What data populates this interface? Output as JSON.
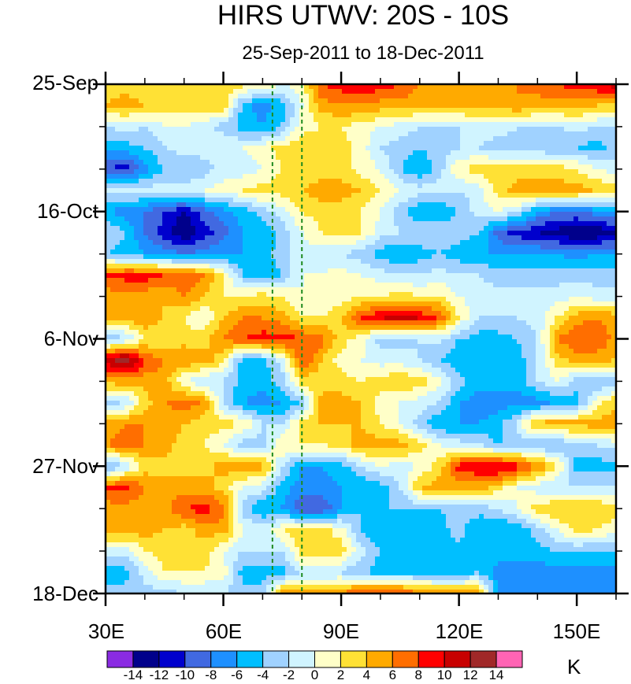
{
  "chart_data": {
    "type": "heatmap",
    "title": "HIRS UTWV: 20S - 10S",
    "subtitle": "25-Sep-2011 to 18-Dec-2011",
    "xlabel": "",
    "ylabel": "",
    "units": "K",
    "xlim": [
      30,
      160
    ],
    "ylim_days": [
      0,
      84
    ],
    "x_ticks": [
      {
        "value": 30,
        "label": "30E"
      },
      {
        "value": 60,
        "label": "60E"
      },
      {
        "value": 90,
        "label": "90E"
      },
      {
        "value": 120,
        "label": "120E"
      },
      {
        "value": 150,
        "label": "150E"
      }
    ],
    "x_minor_step": 10,
    "y_ticks": [
      {
        "day": 0,
        "label": "25-Sep"
      },
      {
        "day": 21,
        "label": "16-Oct"
      },
      {
        "day": 42,
        "label": "6-Nov"
      },
      {
        "day": 63,
        "label": "27-Nov"
      },
      {
        "day": 84,
        "label": "18-Dec"
      }
    ],
    "y_minor_step_days": 7,
    "reference_lines": [
      {
        "lon": 72.5,
        "style": "dashed",
        "color": "#1e8a1e"
      },
      {
        "lon": 80,
        "style": "dashed",
        "color": "#1e8a1e"
      }
    ],
    "colorbar": {
      "levels": [
        -14,
        -12,
        -10,
        -8,
        -6,
        -4,
        -2,
        0,
        2,
        4,
        6,
        8,
        10,
        12,
        14
      ],
      "labels": [
        "-14",
        "-12",
        "-10",
        "-8",
        "-6",
        "-4",
        "-2",
        "0",
        "2",
        "4",
        "6",
        "8",
        "10",
        "12",
        "14"
      ],
      "colors": [
        "#8a2be2",
        "#00008b",
        "#0000cd",
        "#4169e1",
        "#1e90ff",
        "#00bfff",
        "#a0d2ff",
        "#d0f4ff",
        "#ffffc8",
        "#ffe135",
        "#ffaa00",
        "#ff6e00",
        "#ff0000",
        "#c80000",
        "#a02828",
        "#ff64b4"
      ]
    },
    "grid": {
      "lon": [
        30,
        35,
        40,
        45,
        50,
        55,
        60,
        65,
        70,
        75,
        80,
        85,
        90,
        95,
        100,
        105,
        110,
        115,
        120,
        125,
        130,
        135,
        140,
        145,
        150,
        155,
        160
      ],
      "day_step": 3.5,
      "values": [
        [
          3,
          3,
          3,
          3,
          4,
          3,
          3,
          3,
          2,
          0,
          1,
          8,
          9,
          10,
          9,
          8,
          6,
          5,
          5,
          5,
          5,
          6,
          7,
          8,
          9,
          10,
          11
        ],
        [
          4,
          5,
          4,
          3,
          3,
          3,
          4,
          -5,
          -7,
          -5,
          0,
          5,
          6,
          6,
          5,
          5,
          5,
          5,
          5,
          5,
          5,
          6,
          5,
          5,
          5,
          4,
          4
        ],
        [
          -2,
          -1,
          -2,
          0,
          0,
          -1,
          -3,
          -5,
          -6,
          -4,
          1,
          2,
          2,
          1,
          0,
          -1,
          -2,
          -2,
          -2,
          -1,
          -1,
          -2,
          -2,
          -2,
          -1,
          -2,
          -2
        ],
        [
          -5,
          -5,
          -4,
          -2,
          -1,
          -1,
          0,
          0,
          1,
          3,
          4,
          4,
          3,
          1,
          -2,
          -3,
          -4,
          -3,
          -2,
          -2,
          -3,
          -3,
          -3,
          -4,
          -4,
          -5,
          -3
        ],
        [
          -10,
          -11,
          -7,
          -4,
          -4,
          -3,
          -1,
          -1,
          0,
          2,
          3,
          3,
          3,
          1,
          0,
          -4,
          -6,
          -3,
          2,
          3,
          3,
          3,
          3,
          3,
          2,
          0,
          -1
        ],
        [
          -1,
          -1,
          -1,
          -1,
          -1,
          0,
          1,
          2,
          3,
          3,
          4,
          5,
          5,
          4,
          2,
          0,
          -1,
          -1,
          -2,
          -1,
          3,
          5,
          5,
          5,
          5,
          4,
          3
        ],
        [
          -6,
          -7,
          -8,
          -10,
          -12,
          -9,
          -7,
          -5,
          -3,
          -1,
          2,
          3,
          3,
          2,
          0,
          -3,
          -6,
          -6,
          -4,
          -1,
          0,
          -2,
          -6,
          -8,
          -8,
          -7,
          -6
        ],
        [
          -2,
          -4,
          -8,
          -11,
          -14,
          -11,
          -9,
          -6,
          -6,
          -3,
          0,
          2,
          3,
          2,
          -1,
          -2,
          -2,
          -2,
          -3,
          -4,
          -9,
          -11,
          -12,
          -13,
          -14,
          -14,
          -12
        ],
        [
          -4,
          -5,
          -6,
          -7,
          -8,
          -7,
          -6,
          -6,
          -5,
          -3,
          -1,
          -1,
          -2,
          -3,
          -5,
          -6,
          -5,
          -4,
          -5,
          -6,
          -6,
          -6,
          -6,
          -6,
          -7,
          -6,
          -6
        ],
        [
          8,
          9,
          9,
          8,
          8,
          6,
          2,
          -4,
          -5,
          -4,
          0,
          0,
          1,
          0,
          -1,
          -2,
          -2,
          -1,
          -2,
          -2,
          -3,
          -3,
          -3,
          -3,
          -3,
          -3,
          -3
        ],
        [
          5,
          5,
          5,
          4,
          6,
          4,
          2,
          2,
          3,
          2,
          0,
          0,
          1,
          2,
          2,
          3,
          2,
          2,
          0,
          -1,
          -1,
          -1,
          -1,
          -1,
          0,
          -1,
          -1
        ],
        [
          5,
          5,
          6,
          4,
          2,
          0,
          4,
          6,
          6,
          5,
          2,
          2,
          4,
          8,
          10,
          11,
          10,
          8,
          2,
          -2,
          -2,
          -2,
          -1,
          2,
          5,
          6,
          5
        ],
        [
          -4,
          -2,
          2,
          2,
          3,
          3,
          6,
          8,
          9,
          9,
          8,
          7,
          3,
          1,
          -3,
          -3,
          -2,
          -1,
          -4,
          -5,
          -5,
          -4,
          -2,
          6,
          8,
          8,
          5
        ],
        [
          11,
          14,
          8,
          6,
          6,
          5,
          3,
          -5,
          -5,
          -1,
          8,
          4,
          1,
          0,
          -1,
          -1,
          -2,
          -4,
          -6,
          -6,
          -6,
          -5,
          -2,
          3,
          5,
          5,
          4
        ],
        [
          5,
          5,
          5,
          5,
          0,
          -2,
          -2,
          -5,
          -5,
          -3,
          3,
          3,
          3,
          2,
          3,
          4,
          3,
          1,
          -3,
          -5,
          -5,
          -5,
          -2,
          0,
          -3,
          -4,
          -4
        ],
        [
          -3,
          -2,
          3,
          6,
          7,
          6,
          -2,
          -6,
          -7,
          -6,
          -4,
          5,
          5,
          4,
          1,
          0,
          -1,
          -2,
          -6,
          -7,
          -7,
          -7,
          -7,
          -6,
          -5,
          1,
          4
        ],
        [
          5,
          6,
          6,
          5,
          4,
          3,
          3,
          2,
          -2,
          -2,
          3,
          4,
          4,
          4,
          2,
          0,
          -3,
          -6,
          -6,
          -6,
          -5,
          -1,
          5,
          5,
          5,
          5,
          5
        ],
        [
          6,
          7,
          6,
          5,
          3,
          2,
          0,
          -3,
          -3,
          2,
          2,
          2,
          3,
          5,
          5,
          5,
          3,
          0,
          -1,
          -2,
          -4,
          -4,
          -4,
          -4,
          -3,
          -2,
          -1
        ],
        [
          -5,
          -2,
          3,
          3,
          3,
          3,
          5,
          5,
          5,
          -2,
          -6,
          -6,
          -5,
          -2,
          0,
          -1,
          0,
          3,
          9,
          10,
          11,
          9,
          6,
          2,
          -5,
          -5,
          -5
        ],
        [
          8,
          9,
          6,
          5,
          5,
          5,
          3,
          0,
          -1,
          -5,
          -7,
          -7,
          -6,
          -6,
          -5,
          -2,
          4,
          5,
          5,
          5,
          3,
          0,
          -1,
          -2,
          -2,
          -2,
          -2
        ],
        [
          5,
          5,
          5,
          5,
          8,
          9,
          7,
          -3,
          -6,
          -6,
          -10,
          -10,
          -6,
          -4,
          -4,
          -4,
          -4,
          -4,
          -3,
          -3,
          -2,
          0,
          3,
          4,
          4,
          4,
          3
        ],
        [
          5,
          5,
          5,
          4,
          3,
          5,
          5,
          0,
          -1,
          2,
          3,
          3,
          1,
          -4,
          -6,
          -6,
          -6,
          -5,
          -3,
          -6,
          -6,
          -6,
          -3,
          0,
          3,
          2,
          1
        ],
        [
          -1,
          -1,
          2,
          3,
          3,
          3,
          0,
          -2,
          -2,
          -2,
          3,
          3,
          3,
          -1,
          -4,
          -4,
          -4,
          -4,
          -5,
          -5,
          -5,
          -5,
          -5,
          -4,
          -4,
          -4,
          -4
        ],
        [
          -5,
          -5,
          -1,
          2,
          2,
          2,
          1,
          -5,
          -5,
          -5,
          -2,
          -2,
          -2,
          -4,
          -5,
          -5,
          -5,
          -5,
          -5,
          -4,
          -7,
          -7,
          -7,
          -7,
          -7,
          -7,
          -7
        ],
        [
          -3,
          -3,
          -3,
          -3,
          -2,
          -2,
          -2,
          -3,
          -3,
          5,
          5,
          5,
          6,
          8,
          9,
          8,
          6,
          5,
          5,
          5,
          -6,
          -6,
          -6,
          -6,
          -6,
          -6,
          -6
        ]
      ]
    }
  }
}
